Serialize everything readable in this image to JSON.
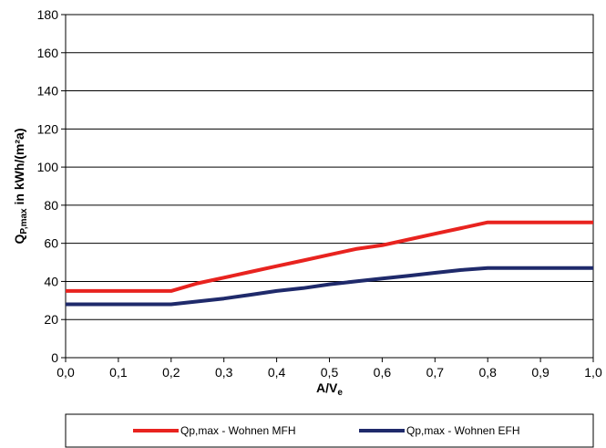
{
  "chart_data": {
    "type": "line",
    "xlabel_main": "A/V",
    "xlabel_sub": "e",
    "ylabel_main": "Q",
    "ylabel_sub": "P,max",
    "ylabel_rest": " in kWh/(m²a)",
    "xlim": [
      0,
      1
    ],
    "ylim": [
      0,
      180
    ],
    "x_ticks": [
      0,
      0.1,
      0.2,
      0.3,
      0.4,
      0.5,
      0.6,
      0.7,
      0.8,
      0.9,
      1.0
    ],
    "x_tick_labels": [
      "0,0",
      "0,1",
      "0,2",
      "0,3",
      "0,4",
      "0,5",
      "0,6",
      "0,7",
      "0,8",
      "0,9",
      "1,0"
    ],
    "y_ticks": [
      0,
      20,
      40,
      60,
      80,
      100,
      120,
      140,
      160,
      180
    ],
    "y_tick_labels": [
      "0",
      "20",
      "40",
      "60",
      "80",
      "100",
      "120",
      "140",
      "160",
      "180"
    ],
    "grid": "horizontal",
    "legend_position": "bottom",
    "series": [
      {
        "name": "Qp,max - Wohnen MFH",
        "color": "#e8231f",
        "x": [
          0,
          0.2,
          0.25,
          0.3,
          0.35,
          0.4,
          0.45,
          0.5,
          0.55,
          0.6,
          0.65,
          0.7,
          0.75,
          0.8,
          0.85,
          0.9,
          0.95,
          1.0
        ],
        "y": [
          35,
          35,
          39,
          42,
          45,
          48,
          51,
          54,
          57,
          59,
          62,
          65,
          68,
          71,
          71,
          71,
          71,
          71
        ]
      },
      {
        "name": "Qp,max - Wohnen EFH",
        "color": "#1f2a6b",
        "x": [
          0,
          0.2,
          0.25,
          0.3,
          0.35,
          0.4,
          0.45,
          0.5,
          0.55,
          0.6,
          0.65,
          0.7,
          0.75,
          0.8,
          0.85,
          0.9,
          0.95,
          1.0
        ],
        "y": [
          28,
          28,
          29.5,
          31,
          33,
          35,
          36.5,
          38.5,
          40,
          41.5,
          43,
          44.5,
          46,
          47,
          47,
          47,
          47,
          47
        ]
      }
    ]
  }
}
